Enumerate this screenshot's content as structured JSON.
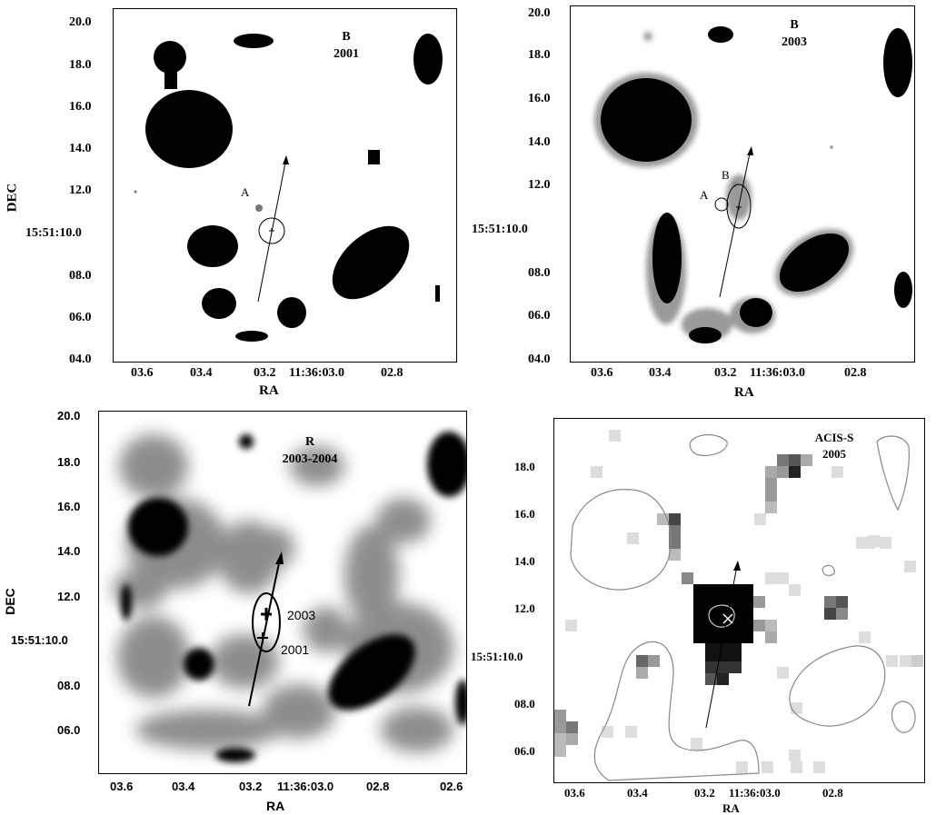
{
  "panels": [
    {
      "id": "tl",
      "band": "B",
      "epoch": "2001",
      "x_axis_label": "RA",
      "y_axis_label": "DEC",
      "x_ticks": [
        "03.6",
        "03.4",
        "03.2",
        "11:36:03.0",
        "02.8"
      ],
      "y_ticks": [
        "20.0",
        "18.0",
        "16.0",
        "14.0",
        "12.0",
        "15:51:10.0",
        "08.0",
        "06.0",
        "04.0"
      ],
      "markers": [
        "A"
      ]
    },
    {
      "id": "tr",
      "band": "B",
      "epoch": "2003",
      "x_axis_label": "RA",
      "y_axis_label": "",
      "x_ticks": [
        "03.6",
        "03.4",
        "03.2",
        "11:36:03.0",
        "02.8"
      ],
      "y_ticks": [
        "20.0",
        "18.0",
        "16.0",
        "14.0",
        "12.0",
        "15:51:10.0",
        "08.0",
        "06.0",
        "04.0"
      ],
      "markers": [
        "A",
        "B"
      ]
    },
    {
      "id": "bl",
      "band": "R",
      "epoch": "2003-2004",
      "x_axis_label": "RA",
      "y_axis_label": "DEC",
      "x_ticks": [
        "03.6",
        "03.4",
        "03.2",
        "11:36:03.0",
        "02.8",
        "02.6"
      ],
      "y_ticks": [
        "20.0",
        "18.0",
        "16.0",
        "14.0",
        "12.0",
        "15:51:10.0",
        "08.0",
        "06.0"
      ],
      "position_labels": [
        "2003",
        "2001"
      ]
    },
    {
      "id": "br",
      "band": "ACIS-S",
      "epoch": "2005",
      "x_axis_label": "RA",
      "y_axis_label": "",
      "x_ticks": [
        "03.6",
        "03.4",
        "03.2",
        "11:36:03.0",
        "02.8"
      ],
      "y_ticks": [
        "18.0",
        "16.0",
        "14.0",
        "12.0",
        "15:51:10.0",
        "08.0",
        "06.0"
      ]
    }
  ]
}
